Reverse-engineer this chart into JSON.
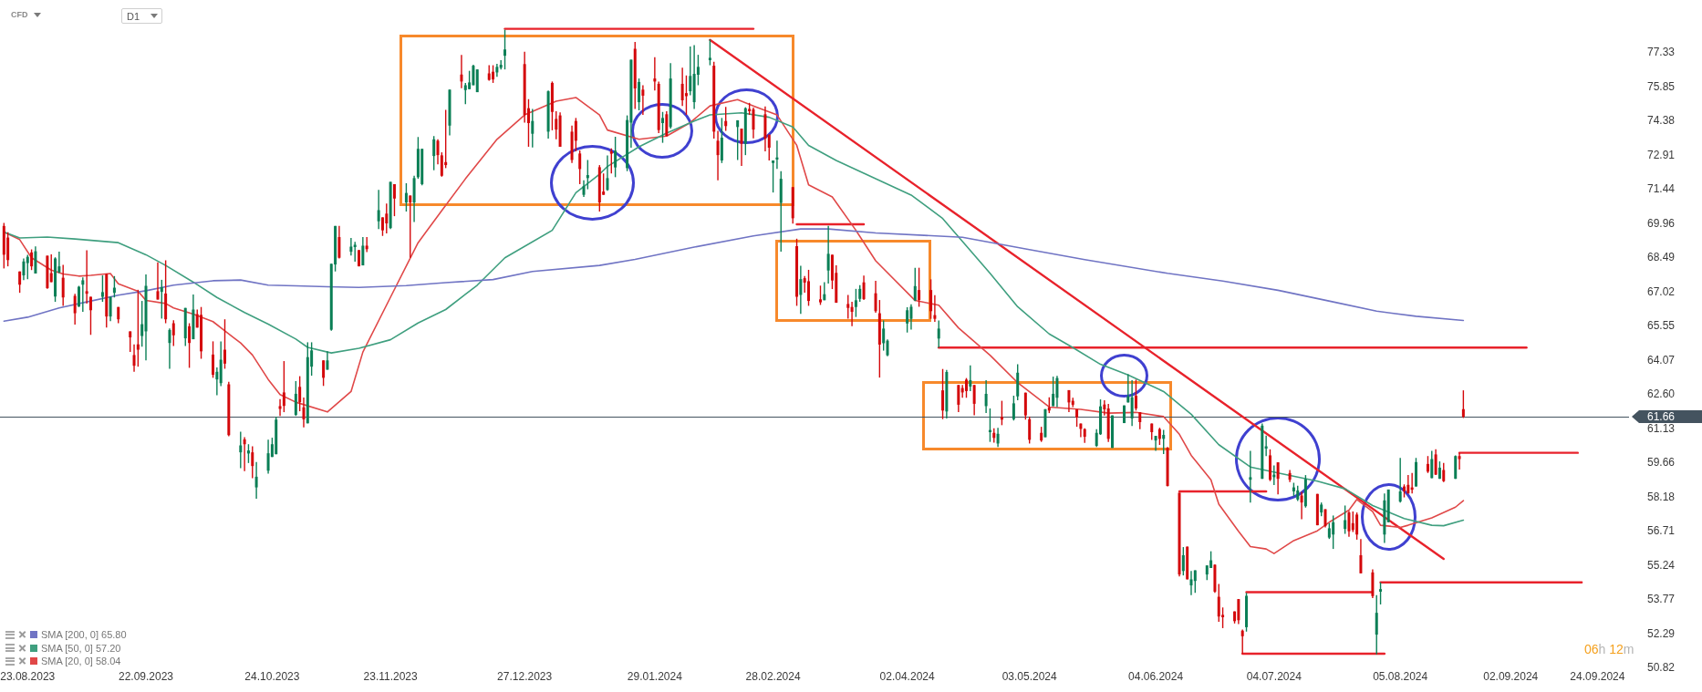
{
  "chart_data": {
    "type": "candlestick",
    "x": [
      "2023-08-17",
      "2023-08-18",
      "2023-08-21",
      "2023-08-22",
      "2023-08-23",
      "2023-08-24",
      "2023-08-25",
      "2023-08-28",
      "2023-08-29",
      "2023-08-30",
      "2023-08-31",
      "2023-09-01",
      "2023-09-04",
      "2023-09-05",
      "2023-09-06",
      "2023-09-07",
      "2023-09-08",
      "2023-09-11",
      "2023-09-12",
      "2023-09-13",
      "2023-09-14",
      "2023-09-15",
      "2023-09-18",
      "2023-09-19",
      "2023-09-20",
      "2023-09-21",
      "2023-09-22",
      "2023-09-25",
      "2023-09-26",
      "2023-09-27",
      "2023-09-28",
      "2023-09-29",
      "2023-10-02",
      "2023-10-03",
      "2023-10-04",
      "2023-10-05",
      "2023-10-06",
      "2023-10-09",
      "2023-10-10",
      "2023-10-11",
      "2023-10-12",
      "2023-10-13",
      "2023-10-16",
      "2023-10-17",
      "2023-10-18",
      "2023-10-19",
      "2023-10-20",
      "2023-10-23",
      "2023-10-24",
      "2023-10-25",
      "2023-10-26",
      "2023-10-27",
      "2023-10-30",
      "2023-10-31",
      "2023-11-01",
      "2023-11-02",
      "2023-11-03",
      "2023-11-06",
      "2023-11-07",
      "2023-11-08",
      "2023-11-09",
      "2023-11-10",
      "2023-11-13",
      "2023-11-14",
      "2023-11-15",
      "2023-11-16",
      "2023-11-17",
      "2023-11-20",
      "2023-11-21",
      "2023-11-22",
      "2023-11-23",
      "2023-11-24",
      "2023-11-27",
      "2023-11-28",
      "2023-11-29",
      "2023-11-30",
      "2023-12-01",
      "2023-12-04",
      "2023-12-05",
      "2023-12-06",
      "2023-12-07",
      "2023-12-08",
      "2023-12-11",
      "2023-12-12",
      "2023-12-13",
      "2023-12-14",
      "2023-12-15",
      "2023-12-18",
      "2023-12-19",
      "2023-12-20",
      "2023-12-21",
      "2023-12-22",
      "2023-12-27",
      "2023-12-28",
      "2023-12-29",
      "2024-01-02",
      "2024-01-03",
      "2024-01-04",
      "2024-01-05",
      "2024-01-08",
      "2024-01-09",
      "2024-01-10",
      "2024-01-11",
      "2024-01-12",
      "2024-01-15",
      "2024-01-16",
      "2024-01-17",
      "2024-01-18",
      "2024-01-19",
      "2024-01-22",
      "2024-01-23",
      "2024-01-24",
      "2024-01-25",
      "2024-01-26",
      "2024-01-29",
      "2024-01-30",
      "2024-01-31",
      "2024-02-01",
      "2024-02-02",
      "2024-02-05",
      "2024-02-06",
      "2024-02-07",
      "2024-02-08",
      "2024-02-09",
      "2024-02-12",
      "2024-02-13",
      "2024-02-14",
      "2024-02-15",
      "2024-02-16",
      "2024-02-19",
      "2024-02-20",
      "2024-02-21",
      "2024-02-22",
      "2024-02-23",
      "2024-02-26",
      "2024-02-27",
      "2024-02-28",
      "2024-02-29",
      "2024-03-01",
      "2024-03-04",
      "2024-03-05",
      "2024-03-06",
      "2024-03-07",
      "2024-03-08",
      "2024-03-11",
      "2024-03-12",
      "2024-03-13",
      "2024-03-14",
      "2024-03-15",
      "2024-03-18",
      "2024-03-19",
      "2024-03-20",
      "2024-03-21",
      "2024-03-22",
      "2024-03-25",
      "2024-03-26",
      "2024-03-27",
      "2024-03-28",
      "2024-04-02",
      "2024-04-03",
      "2024-04-04",
      "2024-04-05",
      "2024-04-08",
      "2024-04-09",
      "2024-04-10",
      "2024-04-11",
      "2024-04-12",
      "2024-04-15",
      "2024-04-16",
      "2024-04-17",
      "2024-04-18",
      "2024-04-19",
      "2024-04-22",
      "2024-04-23",
      "2024-04-24",
      "2024-04-25",
      "2024-04-26",
      "2024-04-29",
      "2024-04-30",
      "2024-05-02",
      "2024-05-03",
      "2024-05-06",
      "2024-05-07",
      "2024-05-08",
      "2024-05-09",
      "2024-05-10",
      "2024-05-13",
      "2024-05-14",
      "2024-05-15",
      "2024-05-16",
      "2024-05-17",
      "2024-05-20",
      "2024-05-21",
      "2024-05-22",
      "2024-05-23",
      "2024-05-24",
      "2024-05-27",
      "2024-05-28",
      "2024-05-29",
      "2024-05-30",
      "2024-05-31",
      "2024-06-03",
      "2024-06-04",
      "2024-06-05",
      "2024-06-06",
      "2024-06-07",
      "2024-06-10",
      "2024-06-11",
      "2024-06-12",
      "2024-06-13",
      "2024-06-14",
      "2024-06-17",
      "2024-06-18",
      "2024-06-19",
      "2024-06-20",
      "2024-06-21",
      "2024-06-24",
      "2024-06-25",
      "2024-06-26",
      "2024-06-27",
      "2024-06-28",
      "2024-07-01",
      "2024-07-02",
      "2024-07-03",
      "2024-07-04",
      "2024-07-05",
      "2024-07-08",
      "2024-07-09",
      "2024-07-10",
      "2024-07-11",
      "2024-07-12",
      "2024-07-15",
      "2024-07-16",
      "2024-07-17",
      "2024-07-18",
      "2024-07-19",
      "2024-07-22",
      "2024-07-23",
      "2024-07-24",
      "2024-07-25",
      "2024-07-26",
      "2024-07-29",
      "2024-07-30",
      "2024-07-31",
      "2024-08-01",
      "2024-08-02",
      "2024-08-05",
      "2024-08-06",
      "2024-08-07",
      "2024-08-08",
      "2024-08-09",
      "2024-08-12",
      "2024-08-13",
      "2024-08-14",
      "2024-08-15",
      "2024-08-16",
      "2024-08-19",
      "2024-08-20",
      "2024-08-21"
    ],
    "ohlc": [
      [
        69.87,
        70.0,
        68.04,
        68.63
      ],
      [
        69.37,
        69.6,
        68.13,
        68.4
      ],
      [
        67.91,
        67.91,
        66.99,
        67.34
      ],
      [
        67.74,
        68.47,
        67.54,
        68.34
      ],
      [
        68.27,
        68.63,
        67.58,
        68.54
      ],
      [
        68.73,
        68.86,
        67.97,
        68.13
      ],
      [
        67.82,
        68.99,
        67.82,
        68.78
      ],
      [
        68.59,
        68.59,
        67.16,
        67.19
      ],
      [
        67.84,
        68.65,
        67.45,
        67.45
      ],
      [
        66.83,
        68.52,
        66.6,
        68.47
      ],
      [
        67.87,
        68.76,
        67.84,
        68.13
      ],
      [
        67.64,
        68.19,
        66.43,
        66.79
      ],
      [
        66.86,
        66.95,
        65.62,
        66.11
      ],
      [
        66.4,
        67.29,
        66.38,
        67.25
      ],
      [
        67.34,
        67.65,
        66.17,
        67.53
      ],
      [
        67.06,
        68.82,
        66.53,
        66.95
      ],
      [
        66.82,
        66.82,
        65.18,
        66.24
      ],
      [
        66.82,
        67.74,
        66.6,
        67.02
      ],
      [
        67.8,
        67.8,
        65.49,
        65.97
      ],
      [
        65.97,
        66.82,
        65.77,
        66.82
      ],
      [
        66.99,
        67.71,
        66.79,
        67.21
      ],
      [
        66.38,
        66.38,
        65.68,
        65.85
      ],
      [
        65.33,
        65.33,
        64.44,
        65.07
      ],
      [
        64.31,
        64.77,
        63.59,
        63.85
      ],
      [
        64.77,
        67.12,
        63.81,
        64.54
      ],
      [
        65.13,
        66.64,
        64.67,
        65.64
      ],
      [
        65.33,
        67.78,
        64.08,
        67.29
      ],
      [
        67.06,
        68.3,
        66.7,
        66.7
      ],
      [
        67.03,
        67.55,
        65.88,
        67.23
      ],
      [
        66.96,
        68.39,
        65.68,
        65.85
      ],
      [
        64.83,
        65.46,
        63.72,
        65.39
      ],
      [
        65.68,
        65.81,
        64.7,
        65.16
      ],
      [
        65.03,
        66.34,
        64.7,
        66.34
      ],
      [
        65.55,
        65.68,
        63.76,
        64.83
      ],
      [
        64.99,
        66.92,
        64.99,
        66.27
      ],
      [
        66.07,
        66.27,
        65.49,
        65.49
      ],
      [
        66.04,
        66.38,
        64.15,
        64.47
      ],
      [
        64.33,
        64.9,
        63.33,
        63.46
      ],
      [
        63.26,
        63.78,
        62.58,
        63.59
      ],
      [
        63.1,
        64.9,
        62.97,
        64.11
      ],
      [
        64.54,
        65.85,
        63.72,
        63.94
      ],
      [
        63.05,
        63.16,
        60.81,
        60.86
      ],
      [
        60.12,
        61.01,
        59.44,
        60.42
      ],
      [
        60.68,
        60.77,
        59.31,
        60.47
      ],
      [
        60.07,
        60.47,
        59.66,
        60.2
      ],
      [
        60.12,
        60.38,
        59.01,
        59.53
      ],
      [
        58.61,
        59.7,
        58.12,
        59.07
      ],
      [
        59.33,
        60.67,
        59.2,
        60.08
      ],
      [
        59.92,
        60.75,
        59.92,
        60.47
      ],
      [
        60.04,
        61.66,
        60.04,
        61.53
      ],
      [
        62.11,
        62.41,
        61.69,
        61.99
      ],
      [
        62.7,
        64.05,
        61.85,
        62.12
      ],
      [
        61.73,
        63.19,
        61.69,
        62.64
      ],
      [
        62.94,
        63.4,
        61.89,
        62.28
      ],
      [
        62.06,
        62.48,
        61.2,
        61.54
      ],
      [
        61.37,
        64.86,
        61.37,
        64.22
      ],
      [
        63.81,
        64.86,
        63.42,
        64.51
      ],
      [
        64.08,
        64.08,
        62.98,
        63.33
      ],
      [
        63.68,
        64.47,
        63.68,
        64.08
      ],
      [
        65.4,
        68.24,
        65.36,
        68.24
      ],
      [
        68.21,
        69.87,
        67.91,
        69.87
      ],
      [
        69.39,
        69.87,
        68.47,
        68.5
      ],
      [
        68.76,
        69.35,
        68.6,
        68.98
      ],
      [
        68.96,
        69.19,
        68.33,
        69.06
      ],
      [
        68.83,
        68.83,
        68.13,
        68.13
      ],
      [
        68.17,
        69.39,
        68.17,
        69.02
      ],
      [
        69.02,
        69.39,
        68.74,
        68.87
      ],
      [
        70.07,
        71.42,
        69.74,
        70.55
      ],
      [
        70.24,
        70.24,
        69.44,
        69.68
      ],
      [
        70.4,
        70.83,
        69.55,
        69.98
      ],
      [
        69.78,
        71.77,
        69.74,
        71.77
      ],
      [
        71.67,
        71.67,
        70.29,
        71.05
      ],
      [
        70.88,
        71.71,
        70.49,
        71.29
      ],
      [
        71.18,
        71.18,
        68.5,
        70.88
      ],
      [
        70.88,
        72.03,
        70.04,
        71.93
      ],
      [
        71.97,
        73.7,
        71.9,
        73.19
      ],
      [
        71.67,
        73.19,
        71.62,
        73.19
      ],
      [
        72.88,
        73.74,
        72.27,
        73.6
      ],
      [
        73.54,
        73.6,
        72.52,
        72.92
      ],
      [
        72.91,
        73.04,
        71.99,
        72.03
      ],
      [
        72.62,
        74.87,
        72.36,
        72.49
      ],
      [
        74.19,
        75.74,
        73.77,
        75.74
      ],
      [
        76.39,
        77.23,
        75.8,
        76.09
      ],
      [
        75.72,
        76.03,
        75.11,
        75.93
      ],
      [
        75.76,
        76.55,
        75.76,
        76.05
      ],
      [
        75.93,
        76.81,
        75.93,
        76.77
      ],
      [
        75.63,
        76.61,
        75.63,
        76.61
      ],
      [
        76.44,
        76.79,
        76.13,
        76.16
      ],
      [
        76.51,
        76.79,
        76.03,
        76.18
      ],
      [
        76.48,
        76.85,
        76.29,
        76.72
      ],
      [
        76.68,
        77.01,
        76.61,
        76.81
      ],
      [
        77.2,
        78.32,
        76.61,
        77.47
      ],
      [
        76.84,
        77.37,
        74.32,
        74.65
      ],
      [
        74.94,
        75.33,
        73.28,
        74.3
      ],
      [
        73.84,
        74.91,
        73.25,
        74.39
      ],
      [
        73.93,
        75.7,
        73.63,
        75.67
      ],
      [
        76.03,
        76.09,
        73.99,
        74.78
      ],
      [
        74.48,
        74.81,
        73.6,
        74.02
      ],
      [
        74.63,
        74.76,
        73.28,
        73.28
      ],
      [
        73.93,
        74.19,
        72.58,
        72.71
      ],
      [
        74.39,
        74.52,
        73.08,
        73.54
      ],
      [
        72.99,
        73.12,
        71.67,
        72.32
      ],
      [
        71.21,
        71.84,
        71.12,
        71.58
      ],
      [
        71.93,
        72.71,
        71.45,
        72.06
      ],
      [
        72.4,
        72.49,
        70.49,
        70.88
      ],
      [
        71.35,
        72.13,
        71.21,
        71.21
      ],
      [
        71.42,
        72.91,
        71.38,
        71.93
      ],
      [
        73.08,
        73.21,
        72.13,
        72.98
      ],
      [
        72.39,
        73.71,
        71.97,
        73.11
      ],
      [
        72.36,
        74.63,
        72.23,
        74.43
      ],
      [
        74.32,
        77.03,
        73.24,
        77.03
      ],
      [
        77.5,
        77.79,
        74.91,
        75.79
      ],
      [
        75.2,
        76.22,
        74.85,
        76.07
      ],
      [
        75.74,
        75.93,
        74.65,
        75.48
      ],
      [
        76.22,
        77.14,
        75.7,
        76.09
      ],
      [
        75.99,
        76.09,
        73.87,
        74.0
      ],
      [
        74.3,
        74.78,
        73.45,
        74.52
      ],
      [
        74.68,
        74.81,
        73.74,
        73.74
      ],
      [
        74.13,
        76.88,
        74.06,
        76.22
      ],
      [
        75.99,
        76.68,
        75.04,
        75.28
      ],
      [
        75.59,
        76.35,
        74.65,
        75.46
      ],
      [
        75.67,
        77.6,
        75.5,
        76.33
      ],
      [
        75.2,
        77.66,
        74.91,
        76.42
      ],
      [
        76.38,
        77.24,
        75.93,
        76.72
      ],
      [
        77.01,
        77.9,
        76.79,
        77.11
      ],
      [
        76.77,
        76.94,
        73.63,
        73.93
      ],
      [
        73.54,
        73.97,
        71.84,
        72.92
      ],
      [
        72.69,
        74.52,
        72.58,
        73.67
      ],
      [
        74.39,
        75.0,
        73.97,
        74.17
      ],
      [
        74.13,
        74.42,
        72.71,
        74.42
      ],
      [
        74.06,
        74.06,
        72.45,
        73.41
      ],
      [
        73.41,
        74.98,
        72.92,
        74.94
      ],
      [
        74.91,
        75.17,
        74.65,
        74.81
      ],
      [
        74.89,
        74.97,
        73.64,
        74.02
      ],
      [
        74.68,
        75.02,
        73.08,
        73.63
      ],
      [
        73.8,
        73.8,
        72.69,
        73.24
      ],
      [
        72.58,
        72.69,
        71.31,
        72.69
      ],
      [
        72.73,
        73.54,
        72.33,
        72.82
      ],
      [
        70.86,
        72.23,
        68.76,
        71.9
      ],
      [
        71.54,
        71.54,
        69.97,
        70.2
      ],
      [
        69.0,
        69.32,
        66.43,
        66.82
      ],
      [
        66.9,
        68.15,
        66.08,
        67.58
      ],
      [
        67.62,
        67.71,
        67.0,
        67.43
      ],
      [
        67.49,
        67.98,
        66.43,
        66.64
      ],
      [
        66.71,
        67.3,
        66.47,
        66.58
      ],
      [
        66.67,
        67.45,
        66.67,
        66.93
      ],
      [
        67.95,
        69.87,
        67.39,
        68.67
      ],
      [
        68.63,
        68.63,
        67.15,
        67.52
      ],
      [
        67.85,
        68.17,
        66.56,
        66.56
      ],
      [
        66.51,
        66.9,
        65.88,
        66.34
      ],
      [
        66.38,
        66.6,
        65.55,
        66.17
      ],
      [
        66.38,
        67.16,
        65.95,
        66.67
      ],
      [
        66.73,
        67.32,
        66.6,
        67.16
      ],
      [
        67.44,
        67.73,
        66.68,
        66.72
      ],
      [
        66.97,
        67.51,
        66.13,
        66.2
      ],
      [
        66.11,
        66.68,
        63.34,
        64.76
      ],
      [
        64.82,
        65.8,
        64.5,
        65.45
      ],
      [
        64.3,
        64.98,
        64.26,
        64.93
      ],
      [
        65.67,
        66.37,
        65.28,
        66.24
      ],
      [
        65.87,
        66.5,
        65.41,
        66.39
      ],
      [
        66.66,
        68.07,
        66.63,
        67.28
      ],
      [
        67.11,
        68.07,
        66.39,
        66.68
      ],
      [
        67.11,
        67.57,
        65.87,
        66.2
      ],
      [
        66.03,
        66.89,
        65.74,
        65.87
      ],
      [
        65.02,
        65.8,
        64.63,
        65.45
      ],
      [
        62.79,
        63.71,
        61.55,
        61.92
      ],
      [
        61.88,
        63.67,
        61.58,
        63.58
      ],
      [
        63.02,
        63.02,
        61.85,
        62.17
      ],
      [
        62.89,
        63.02,
        62.47,
        62.7
      ],
      [
        63.25,
        63.32,
        62.47,
        62.76
      ],
      [
        62.95,
        63.87,
        62.76,
        63.23
      ],
      [
        63.02,
        63.02,
        61.72,
        62.21
      ],
      [
        62.11,
        63.23,
        61.81,
        62.64
      ],
      [
        60.99,
        62.01,
        60.57,
        61.08
      ],
      [
        60.96,
        61.16,
        60.54,
        60.74
      ],
      [
        60.5,
        61.18,
        60.35,
        60.92
      ],
      [
        61.64,
        62.34,
        61.29,
        61.53
      ],
      [
        61.55,
        62.56,
        61.49,
        62.23
      ],
      [
        62.53,
        63.91,
        62.36,
        63.55
      ],
      [
        62.69,
        62.69,
        61.53,
        61.71
      ],
      [
        61.55,
        61.66,
        60.5,
        60.66
      ],
      [
        60.96,
        61.22,
        60.57,
        60.63
      ],
      [
        60.77,
        61.98,
        60.77,
        61.98
      ],
      [
        62.05,
        62.49,
        61.81,
        61.92
      ],
      [
        62.11,
        63.38,
        62.11,
        62.64
      ],
      [
        62.47,
        63.41,
        62.07,
        63.32
      ],
      [
        62.8,
        62.8,
        61.85,
        62.27
      ],
      [
        62.34,
        62.47,
        62.07,
        62.17
      ],
      [
        61.97,
        61.97,
        61.22,
        61.62
      ],
      [
        61.36,
        61.36,
        60.77,
        61.13
      ],
      [
        61.12,
        61.16,
        60.53,
        60.79
      ],
      [
        60.4,
        61.12,
        60.35,
        60.96
      ],
      [
        60.9,
        62.4,
        60.87,
        62.1
      ],
      [
        62.18,
        62.36,
        61.71,
        61.97
      ],
      [
        62.01,
        62.21,
        60.57,
        60.7
      ],
      [
        60.31,
        61.71,
        60.31,
        61.71
      ],
      [
        61.38,
        62.14,
        61.38,
        62.14
      ],
      [
        62.27,
        63.48,
        62.27,
        62.53
      ],
      [
        61.58,
        63.23,
        61.25,
        62.49
      ],
      [
        62.56,
        63.25,
        61.92,
        62.01
      ],
      [
        61.85,
        61.85,
        61.12,
        61.42
      ],
      [
        61.36,
        61.36,
        60.66,
        60.99
      ],
      [
        60.63,
        60.83,
        60.18,
        60.83
      ],
      [
        61.12,
        61.18,
        60.44,
        60.7
      ],
      [
        60.7,
        61.09,
        60.05,
        60.87
      ],
      [
        60.31,
        60.35,
        58.65,
        58.67
      ],
      [
        58.38,
        58.38,
        54.78,
        54.86
      ],
      [
        55.01,
        56.04,
        54.82,
        55.69
      ],
      [
        56.06,
        56.06,
        54.65,
        54.65
      ],
      [
        54.39,
        55.01,
        53.97,
        54.65
      ],
      [
        54.58,
        55.04,
        54.07,
        55.04
      ],
      [
        54.86,
        55.25,
        54.62,
        55.25
      ],
      [
        55.14,
        55.86,
        55.14,
        55.47
      ],
      [
        55.28,
        55.3,
        54.07,
        54.12
      ],
      [
        53.9,
        54.45,
        52.82,
        53.05
      ],
      [
        53.12,
        53.44,
        52.55,
        53.02
      ],
      [
        53.27,
        53.27,
        52.75,
        52.85
      ],
      [
        53.8,
        53.8,
        52.72,
        52.89
      ],
      [
        52.44,
        52.49,
        51.45,
        52.2
      ],
      [
        52.59,
        54.07,
        52.4,
        53.94
      ],
      [
        58.94,
        60.18,
        57.96,
        59.05
      ],
      [
        58.98,
        61.36,
        58.98,
        61.27
      ],
      [
        60.28,
        60.84,
        59.96,
        60.38
      ],
      [
        59.99,
        60.25,
        58.88,
        58.94
      ],
      [
        59.05,
        59.56,
        58.71,
        59.16
      ],
      [
        59.69,
        59.69,
        58.31,
        58.98
      ],
      [
        59.23,
        59.36,
        58.84,
        58.94
      ],
      [
        58.44,
        58.81,
        58.22,
        58.61
      ],
      [
        58.09,
        58.68,
        58.02,
        58.48
      ],
      [
        58.26,
        58.42,
        57.24,
        57.96
      ],
      [
        57.8,
        59.14,
        57.74,
        58.97
      ],
      [
        58.33,
        58.33,
        56.98,
        56.98
      ],
      [
        57.53,
        57.96,
        57.37,
        57.87
      ],
      [
        57.67,
        57.67,
        56.89,
        56.95
      ],
      [
        56.45,
        57.07,
        56.39,
        56.85
      ],
      [
        56.58,
        57.4,
        55.96,
        57.11
      ],
      [
        56.82,
        57.83,
        56.61,
        57.2
      ],
      [
        57.53,
        57.59,
        56.48,
        56.72
      ],
      [
        57.07,
        57.57,
        56.69,
        56.78
      ],
      [
        57.44,
        57.53,
        56.36,
        56.58
      ],
      [
        55.69,
        56.39,
        54.91,
        54.91
      ],
      [
        54.95,
        55.08,
        53.84,
        53.93
      ],
      [
        52.27,
        53.97,
        51.42,
        53.21
      ],
      [
        54.12,
        54.52,
        53.57,
        54.23
      ],
      [
        56.58,
        58.35,
        56.22,
        58.05
      ],
      [
        57.11,
        58.52,
        57.11,
        58.52
      ],
      [
        58.0,
        59.88,
        57.96,
        58.44
      ],
      [
        58.65,
        58.74,
        58.18,
        58.44
      ],
      [
        58.72,
        59.14,
        58.35,
        58.35
      ],
      [
        58.61,
        59.23,
        58.35,
        58.51
      ],
      [
        58.65,
        59.88,
        58.65,
        59.7
      ],
      [
        59.62,
        59.96,
        59.23,
        59.29
      ],
      [
        59.01,
        60.18,
        59.01,
        59.83
      ],
      [
        60.03,
        60.25,
        59.14,
        59.16
      ],
      [
        58.98,
        59.73,
        58.98,
        59.46
      ],
      [
        59.36,
        59.66,
        58.84,
        58.88
      ],
      [
        58.98,
        59.99,
        58.98,
        59.96
      ],
      [
        59.96,
        60.1,
        59.38,
        59.83
      ],
      [
        61.98,
        62.79,
        61.6,
        61.66
      ]
    ],
    "series": [
      {
        "name": "SMA [200, 0] 65.80",
        "type": "line",
        "color": "#7074c4",
        "x": [
          "2023-08-17",
          "2023-08-23",
          "2023-08-31",
          "2023-09-07",
          "2023-09-15",
          "2023-09-22",
          "2023-09-29",
          "2023-10-09",
          "2023-10-16",
          "2023-10-23",
          "2023-10-30",
          "2023-11-07",
          "2023-11-15",
          "2023-11-27",
          "2023-12-07",
          "2023-12-19",
          "2023-12-29",
          "2024-01-15",
          "2024-01-24",
          "2024-02-08",
          "2024-02-23",
          "2024-03-06",
          "2024-03-13",
          "2024-03-25",
          "2024-04-16",
          "2024-05-02",
          "2024-05-17",
          "2024-06-07",
          "2024-06-21",
          "2024-07-05",
          "2024-07-19",
          "2024-07-30",
          "2024-08-09",
          "2024-08-21"
        ],
        "values": [
          65.77,
          65.94,
          66.34,
          66.6,
          66.89,
          67.08,
          67.32,
          67.51,
          67.54,
          67.32,
          67.29,
          67.25,
          67.22,
          67.3,
          67.43,
          67.56,
          67.91,
          68.17,
          68.43,
          68.96,
          69.44,
          69.74,
          69.74,
          69.57,
          69.38,
          68.88,
          68.42,
          67.83,
          67.5,
          67.1,
          66.6,
          66.2,
          65.98,
          65.8
        ]
      },
      {
        "name": "SMA [50, 0] 57.20",
        "type": "line",
        "color": "#3f9f7f",
        "x": [
          "2023-08-17",
          "2023-08-21",
          "2023-08-28",
          "2023-09-04",
          "2023-09-15",
          "2023-09-22",
          "2023-09-27",
          "2023-10-04",
          "2023-10-10",
          "2023-10-17",
          "2023-10-23",
          "2023-10-30",
          "2023-11-02",
          "2023-11-08",
          "2023-11-15",
          "2023-11-23",
          "2023-11-30",
          "2023-12-07",
          "2023-12-15",
          "2023-12-22",
          "2024-01-03",
          "2024-01-09",
          "2024-01-15",
          "2024-01-17",
          "2024-01-25",
          "2024-02-01",
          "2024-02-08",
          "2024-02-12",
          "2024-02-20",
          "2024-02-27",
          "2024-03-04",
          "2024-03-08",
          "2024-03-15",
          "2024-03-22",
          "2024-04-03",
          "2024-04-11",
          "2024-04-15",
          "2024-04-23",
          "2024-04-30",
          "2024-05-08",
          "2024-05-14",
          "2024-05-21",
          "2024-05-28",
          "2024-06-06",
          "2024-06-13",
          "2024-06-20",
          "2024-06-28",
          "2024-07-05",
          "2024-07-15",
          "2024-07-22",
          "2024-07-29",
          "2024-08-06",
          "2024-08-13",
          "2024-08-16",
          "2024-08-21"
        ],
        "values": [
          69.61,
          69.35,
          69.39,
          69.31,
          69.15,
          68.63,
          68.17,
          67.45,
          66.79,
          66.14,
          65.64,
          65.0,
          64.64,
          64.4,
          64.6,
          64.97,
          65.69,
          66.27,
          67.32,
          68.5,
          69.68,
          71.3,
          72.1,
          72.43,
          73.28,
          73.87,
          74.39,
          74.65,
          74.74,
          74.55,
          74.13,
          73.34,
          72.69,
          72.14,
          71.2,
          70.19,
          69.4,
          67.83,
          66.39,
          65.22,
          64.63,
          63.91,
          63.45,
          62.74,
          61.76,
          60.45,
          59.49,
          59.23,
          58.88,
          58.55,
          57.83,
          57.27,
          56.98,
          56.96,
          57.2
        ]
      },
      {
        "name": "SMA [20, 0] 58.04",
        "type": "line",
        "color": "#e04848",
        "x": [
          "2023-08-17",
          "2023-08-21",
          "2023-08-24",
          "2023-08-29",
          "2023-09-01",
          "2023-09-05",
          "2023-09-08",
          "2023-09-13",
          "2023-09-15",
          "2023-09-20",
          "2023-09-22",
          "2023-09-27",
          "2023-09-29",
          "2023-10-04",
          "2023-10-09",
          "2023-10-12",
          "2023-10-16",
          "2023-10-19",
          "2023-10-23",
          "2023-10-26",
          "2023-10-30",
          "2023-11-07",
          "2023-11-13",
          "2023-11-16",
          "2023-11-23",
          "2023-11-30",
          "2023-12-06",
          "2023-12-12",
          "2023-12-20",
          "2023-12-27",
          "2024-01-04",
          "2024-01-09",
          "2024-01-15",
          "2024-01-17",
          "2024-01-25",
          "2024-02-01",
          "2024-02-07",
          "2024-02-12",
          "2024-02-19",
          "2024-02-23",
          "2024-02-29",
          "2024-03-05",
          "2024-03-08",
          "2024-03-14",
          "2024-03-20",
          "2024-03-25",
          "2024-04-04",
          "2024-04-10",
          "2024-04-15",
          "2024-04-23",
          "2024-04-30",
          "2024-05-08",
          "2024-05-16",
          "2024-05-23",
          "2024-05-30",
          "2024-06-06",
          "2024-06-10",
          "2024-06-13",
          "2024-06-18",
          "2024-06-20",
          "2024-06-25",
          "2024-06-28",
          "2024-07-02",
          "2024-07-04",
          "2024-07-09",
          "2024-07-15",
          "2024-07-18",
          "2024-07-23",
          "2024-07-25",
          "2024-07-29",
          "2024-07-31",
          "2024-08-05",
          "2024-08-07",
          "2024-08-13",
          "2024-08-19",
          "2024-08-21"
        ],
        "values": [
          69.61,
          69.28,
          68.5,
          67.97,
          67.8,
          67.71,
          67.74,
          67.82,
          67.38,
          67.06,
          66.66,
          66.53,
          66.34,
          66.07,
          65.75,
          65.35,
          64.83,
          64.31,
          63.26,
          62.61,
          62.28,
          61.86,
          62.74,
          64.44,
          66.8,
          69.15,
          70.53,
          71.9,
          73.6,
          74.65,
          75.24,
          75.4,
          74.65,
          74.0,
          73.6,
          73.74,
          74.32,
          75.04,
          75.31,
          75.04,
          74.65,
          73.34,
          71.64,
          71.12,
          69.68,
          68.37,
          66.66,
          66.46,
          65.48,
          64.3,
          63.12,
          62.07,
          61.97,
          61.81,
          61.84,
          61.66,
          60.9,
          59.99,
          58.94,
          57.89,
          56.72,
          56.06,
          55.96,
          55.76,
          56.32,
          56.74,
          57.11,
          57.63,
          58.09,
          57.57,
          56.98,
          56.89,
          56.98,
          57.3,
          57.76,
          58.04
        ]
      },
      {
        "type": "line",
        "color": "#e8222b",
        "x": [
          "2024-02-12",
          "2024-08-16"
        ],
        "values": [
          77.88,
          55.53
        ]
      },
      {
        "type": "line",
        "color": "#e8222b",
        "x": [
          "2023-12-22",
          "2024-02-23"
        ],
        "values": [
          78.36,
          78.36
        ]
      },
      {
        "type": "line",
        "color": "#e8222b",
        "x": [
          "2024-03-05",
          "2024-03-22"
        ],
        "values": [
          69.94,
          69.94
        ]
      },
      {
        "type": "line",
        "color": "#e8222b",
        "x": [
          "2024-04-10",
          "2024-09-06"
        ],
        "values": [
          64.63,
          64.63
        ]
      },
      {
        "type": "line",
        "color": "#e8222b",
        "x": [
          "2024-08-20",
          "2024-09-19"
        ],
        "values": [
          60.1,
          60.1
        ]
      },
      {
        "type": "line",
        "color": "#e8222b",
        "x": [
          "2024-06-10",
          "2024-07-02"
        ],
        "values": [
          58.44,
          58.44
        ]
      },
      {
        "type": "line",
        "color": "#e8222b",
        "x": [
          "2024-06-27",
          "2024-07-29"
        ],
        "values": [
          54.1,
          54.1
        ]
      },
      {
        "type": "line",
        "color": "#e8222b",
        "x": [
          "2024-07-31",
          "2024-09-20"
        ],
        "values": [
          54.52,
          54.52
        ]
      },
      {
        "type": "line",
        "color": "#e8222b",
        "x": [
          "2024-06-26",
          "2024-08-01"
        ],
        "values": [
          51.45,
          51.45
        ]
      }
    ],
    "xlim": [
      "2023-08-16",
      "2024-10-02"
    ],
    "xticks": [
      {
        "value": "2023-08-23",
        "label": "23.08.2023"
      },
      {
        "value": "2023-09-22",
        "label": "22.09.2023"
      },
      {
        "value": "2023-10-24",
        "label": "24.10.2023"
      },
      {
        "value": "2023-11-23",
        "label": "23.11.2023"
      },
      {
        "value": "2023-12-27",
        "label": "27.12.2023"
      },
      {
        "value": "2024-01-29",
        "label": "29.01.2024"
      },
      {
        "value": "2024-02-28",
        "label": "28.02.2024"
      },
      {
        "value": "2024-04-02",
        "label": "02.04.2024"
      },
      {
        "value": "2024-05-03",
        "label": "03.05.2024"
      },
      {
        "value": "2024-06-04",
        "label": "04.06.2024"
      },
      {
        "value": "2024-07-04",
        "label": "04.07.2024"
      },
      {
        "value": "2024-08-05",
        "label": "05.08.2024"
      },
      {
        "value": "2024-09-02",
        "label": "02.09.2024"
      },
      {
        "value": "2024-09-24",
        "label": "24.09.2024"
      }
    ],
    "ylim": [
      50.82,
      79.6
    ],
    "yticks": [
      77.33,
      75.85,
      74.38,
      72.91,
      71.44,
      69.96,
      68.49,
      67.02,
      65.55,
      64.07,
      {
        "value": 62.6,
        "label": "62.60"
      },
      61.13,
      59.66,
      58.18,
      56.71,
      55.24,
      53.77,
      52.29,
      50.82
    ],
    "ref_lines": [
      {
        "axis": "y",
        "value": 61.66,
        "label": "61.66",
        "color": "#44535f"
      }
    ],
    "legend": "bottom left",
    "annotations": [
      "CFD",
      "D1",
      "06h 12m"
    ]
  }
}
